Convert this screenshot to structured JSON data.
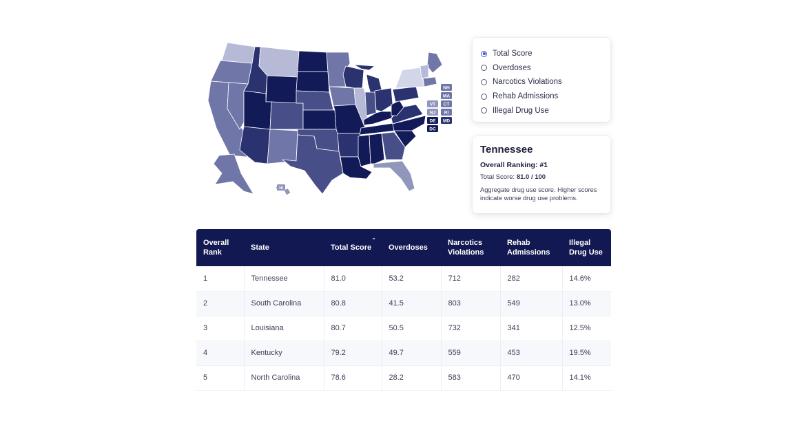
{
  "map": {
    "state_boxes": [
      "NH",
      "MA",
      "VT",
      "CT",
      "NJ",
      "RI",
      "DE",
      "MD",
      "DC"
    ],
    "hawaii_label": "HI",
    "colors": {
      "darkest": "#131a58",
      "dark": "#2a3270",
      "mid": "#484f88",
      "light": "#7077a8",
      "lighter": "#9096bc",
      "lightest": "#b6bad6",
      "pale": "#d3d6e8"
    }
  },
  "metric_options": [
    {
      "label": "Total Score",
      "selected": true
    },
    {
      "label": "Overdoses",
      "selected": false
    },
    {
      "label": "Narcotics Violations",
      "selected": false
    },
    {
      "label": "Rehab Admissions",
      "selected": false
    },
    {
      "label": "Illegal Drug Use",
      "selected": false
    }
  ],
  "detail": {
    "state": "Tennessee",
    "ranking": "Overall Ranking: #1",
    "score_label": "Total Score: ",
    "score_value": "81.0 / 100",
    "description": "Aggregate drug use score. Higher scores indicate worse drug use problems."
  },
  "table": {
    "headers": [
      "Overall Rank",
      "State",
      "Total Score",
      "Overdoses",
      "Narcotics Violations",
      "Rehab Admissions",
      "Illegal Drug Use"
    ],
    "sort_icon": "chevron-down-icon",
    "rows": [
      [
        "1",
        "Tennessee",
        "81.0",
        "53.2",
        "712",
        "282",
        "14.6%"
      ],
      [
        "2",
        "South Carolina",
        "80.8",
        "41.5",
        "803",
        "549",
        "13.0%"
      ],
      [
        "3",
        "Louisiana",
        "80.7",
        "50.5",
        "732",
        "341",
        "12.5%"
      ],
      [
        "4",
        "Kentucky",
        "79.2",
        "49.7",
        "559",
        "453",
        "19.5%"
      ],
      [
        "5",
        "North Carolina",
        "78.6",
        "28.2",
        "583",
        "470",
        "14.1%"
      ]
    ]
  }
}
